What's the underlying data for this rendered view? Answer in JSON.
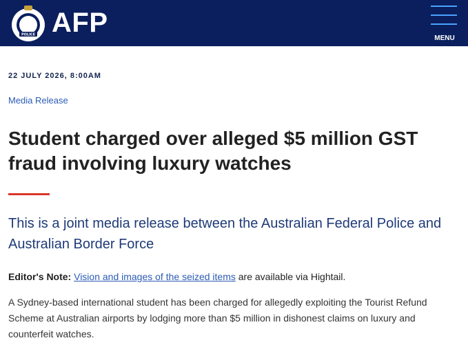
{
  "header": {
    "badge_text": "POLICE",
    "logo_text": "AFP",
    "menu": "MENU"
  },
  "article": {
    "date": "22 JULY 2026, 8:00AM",
    "category": "Media Release",
    "title": "Student charged over alleged $5 million GST fraud involving luxury watches",
    "subtitle": "This is a joint media release between the Australian Federal Police and Australian Border Force",
    "editor_note": {
      "label": "Editor's Note:",
      "link": "Vision and images of the seized items",
      "rest": "are available via Hightail."
    },
    "body": "A Sydney-based international student has been charged for allegedly exploiting the Tourist Refund Scheme at Australian airports by lodging more than $5 million in dishonest claims on luxury and counterfeit watches."
  }
}
